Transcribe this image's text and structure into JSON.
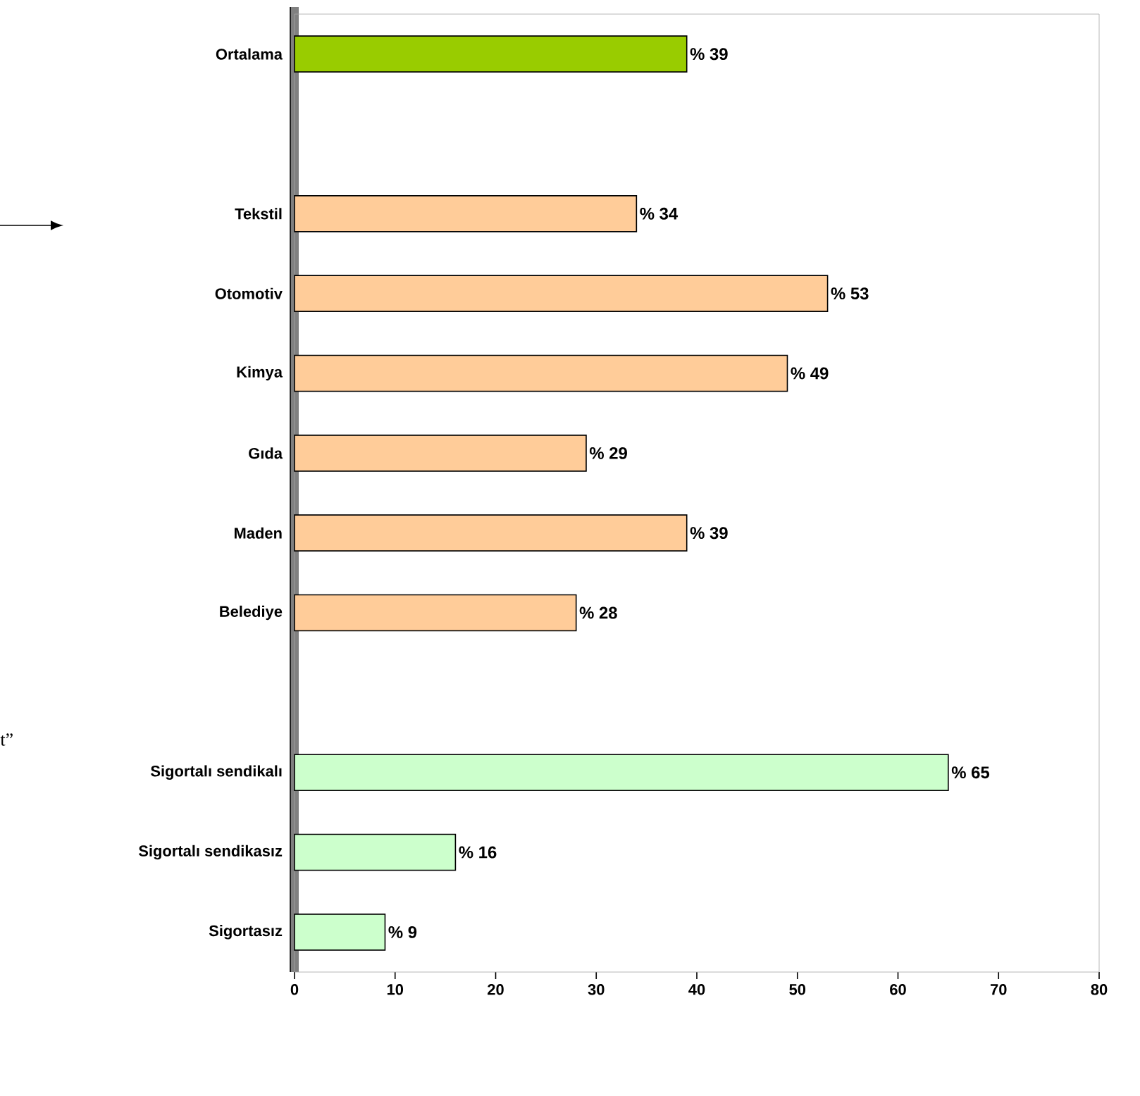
{
  "chart_data": {
    "type": "bar",
    "orientation": "horizontal",
    "categories": [
      "Ortalama",
      null,
      "Tekstil",
      "Otomotiv",
      "Kimya",
      "Gıda",
      "Maden",
      "Belediye",
      null,
      "Sigortalı sendikalı",
      "Sigortalı sendikasız",
      "Sigortasız"
    ],
    "values": [
      39,
      null,
      34,
      53,
      49,
      29,
      39,
      28,
      null,
      65,
      16,
      9
    ],
    "value_labels": [
      "% 39",
      null,
      "% 34",
      "% 53",
      "% 49",
      "% 29",
      "% 39",
      "% 28",
      null,
      "% 65",
      "% 16",
      "% 9"
    ],
    "colors": [
      "#99cc00",
      null,
      "#ffcc99",
      "#ffcc99",
      "#ffcc99",
      "#ffcc99",
      "#ffcc99",
      "#ffcc99",
      null,
      "#ccffcc",
      "#ccffcc",
      "#ccffcc"
    ],
    "xlim": [
      0,
      80
    ],
    "xticks": [
      0,
      10,
      20,
      30,
      40,
      50,
      60,
      70,
      80
    ],
    "grid": false,
    "annotations": [
      "t”"
    ]
  }
}
